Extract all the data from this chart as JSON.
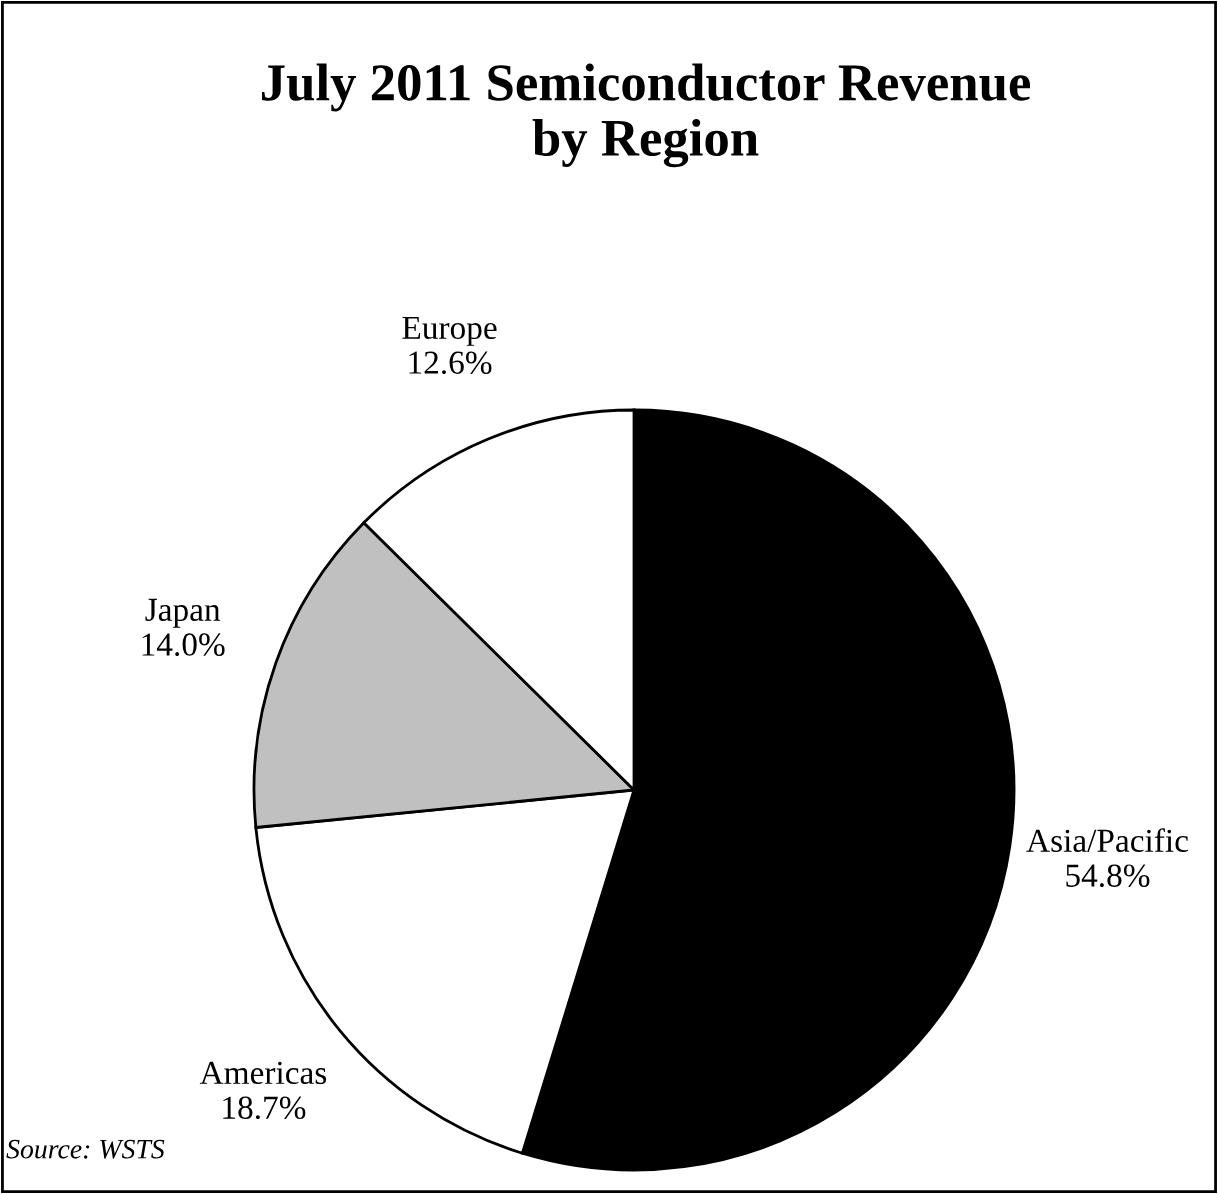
{
  "chart_data": {
    "type": "pie",
    "title": "July 2011 Semiconductor Revenue\nby Region",
    "categories": [
      "Asia/Pacific",
      "Americas",
      "Japan",
      "Europe"
    ],
    "values": [
      54.8,
      18.7,
      14.0,
      12.6
    ],
    "colors": [
      "#000000",
      "#ffffff",
      "#c0c0c0",
      "#ffffff"
    ],
    "value_labels": [
      "54.8%",
      "18.7%",
      "14.0%",
      "12.6%"
    ],
    "annotations": [
      "Source: WSTS"
    ]
  }
}
